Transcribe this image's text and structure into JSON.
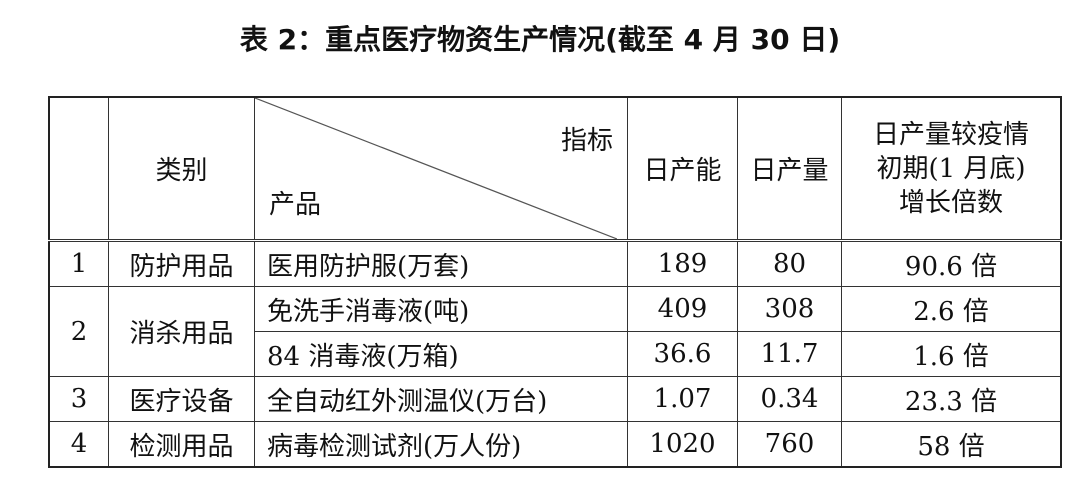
{
  "title": "表 2：重点医疗物资生产情况(截至 4 月 30 日)",
  "table": {
    "headers": {
      "category": "类别",
      "indicator": "指标",
      "product": "产品",
      "capacity": "日产能",
      "output": "日产量",
      "growth": "日产量较疫情初期(1 月底)增长倍数",
      "growth_lines": [
        "日产量较疫情",
        "初期(1 月底)",
        "增长倍数"
      ]
    },
    "groups": [
      {
        "no": "1",
        "category": "防护用品",
        "rows": [
          {
            "product": "医用防护服(万套)",
            "capacity": "189",
            "output": "80",
            "growth": "90.6 倍"
          }
        ]
      },
      {
        "no": "2",
        "category": "消杀用品",
        "rows": [
          {
            "product": "免洗手消毒液(吨)",
            "capacity": "409",
            "output": "308",
            "growth": "2.6 倍"
          },
          {
            "product": "84 消毒液(万箱)",
            "capacity": "36.6",
            "output": "11.7",
            "growth": "1.6 倍"
          }
        ]
      },
      {
        "no": "3",
        "category": "医疗设备",
        "rows": [
          {
            "product": "全自动红外测温仪(万台)",
            "capacity": "1.07",
            "output": "0.34",
            "growth": "23.3 倍"
          }
        ]
      },
      {
        "no": "4",
        "category": "检测用品",
        "rows": [
          {
            "product": "病毒检测试剂(万人份)",
            "capacity": "1020",
            "output": "760",
            "growth": "58 倍"
          }
        ]
      }
    ]
  }
}
